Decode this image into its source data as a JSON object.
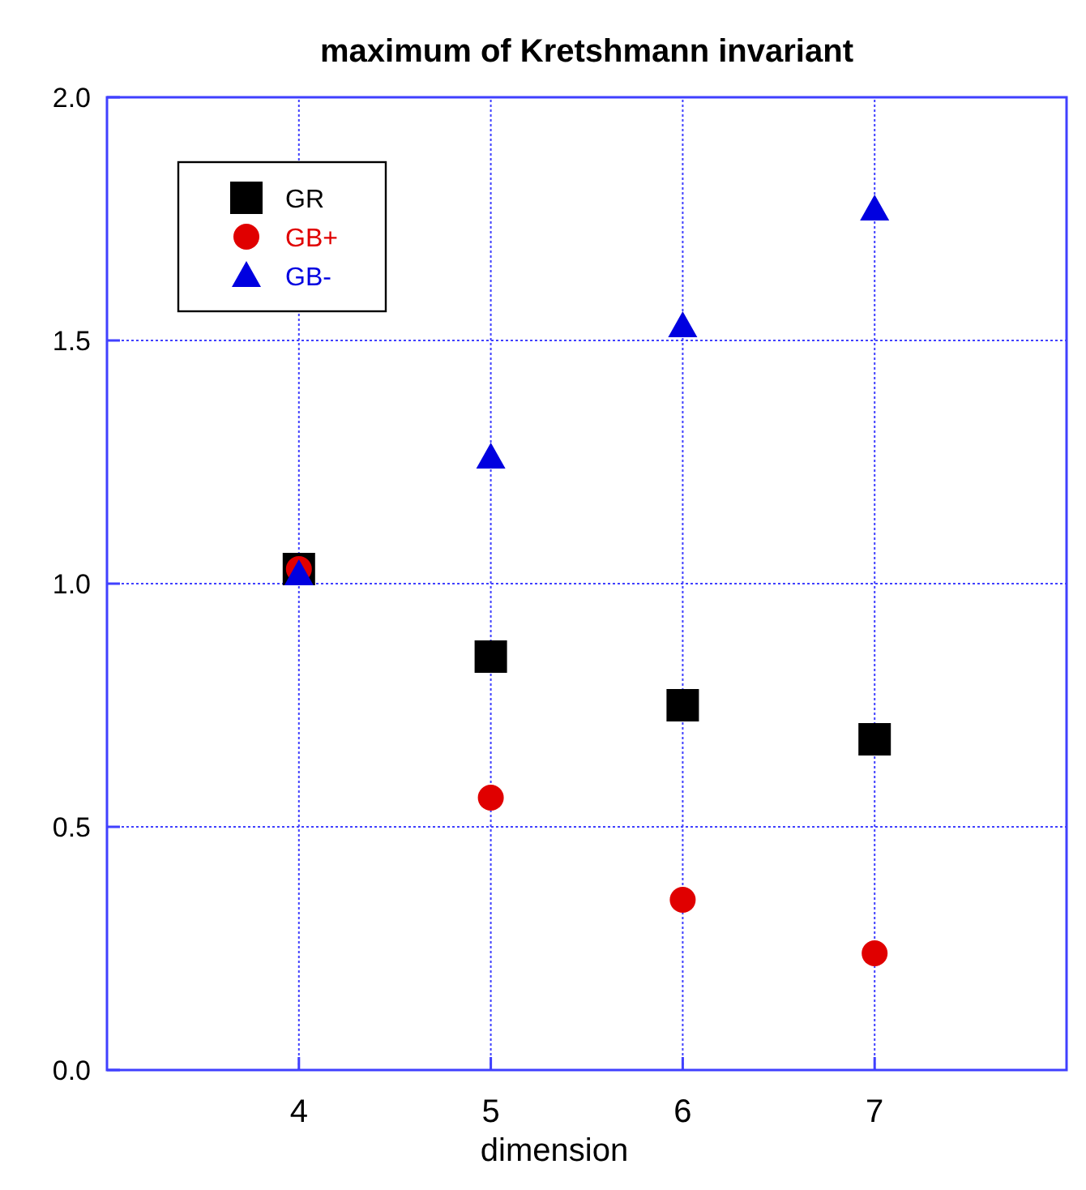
{
  "chart_data": {
    "type": "scatter",
    "title": "maximum of Kretshmann invariant",
    "xlabel": "dimension",
    "xlim": [
      3,
      8
    ],
    "xticks": [
      4,
      5,
      6,
      7
    ],
    "ylim": [
      0,
      2
    ],
    "yticks": [
      {
        "value": 0,
        "label": "0.0"
      },
      {
        "value": 0.5,
        "label": "0.5"
      },
      {
        "value": 1,
        "label": "1.0"
      },
      {
        "value": 1.5,
        "label": "1.5"
      },
      {
        "value": 2,
        "label": "2.0"
      }
    ],
    "x": [
      4,
      5,
      6,
      7
    ],
    "grid": true,
    "legend": "top left",
    "series": [
      {
        "name": "GR",
        "color": "#000000",
        "marker": "square",
        "values": [
          1.03,
          0.85,
          0.75,
          0.68
        ]
      },
      {
        "name": "GB+",
        "color": "#e00000",
        "marker": "circle",
        "values": [
          1.03,
          0.56,
          0.35,
          0.24
        ]
      },
      {
        "name": "GB-",
        "color": "#0000e0",
        "marker": "triangle",
        "values": [
          1.02,
          1.26,
          1.53,
          1.77
        ]
      }
    ]
  }
}
